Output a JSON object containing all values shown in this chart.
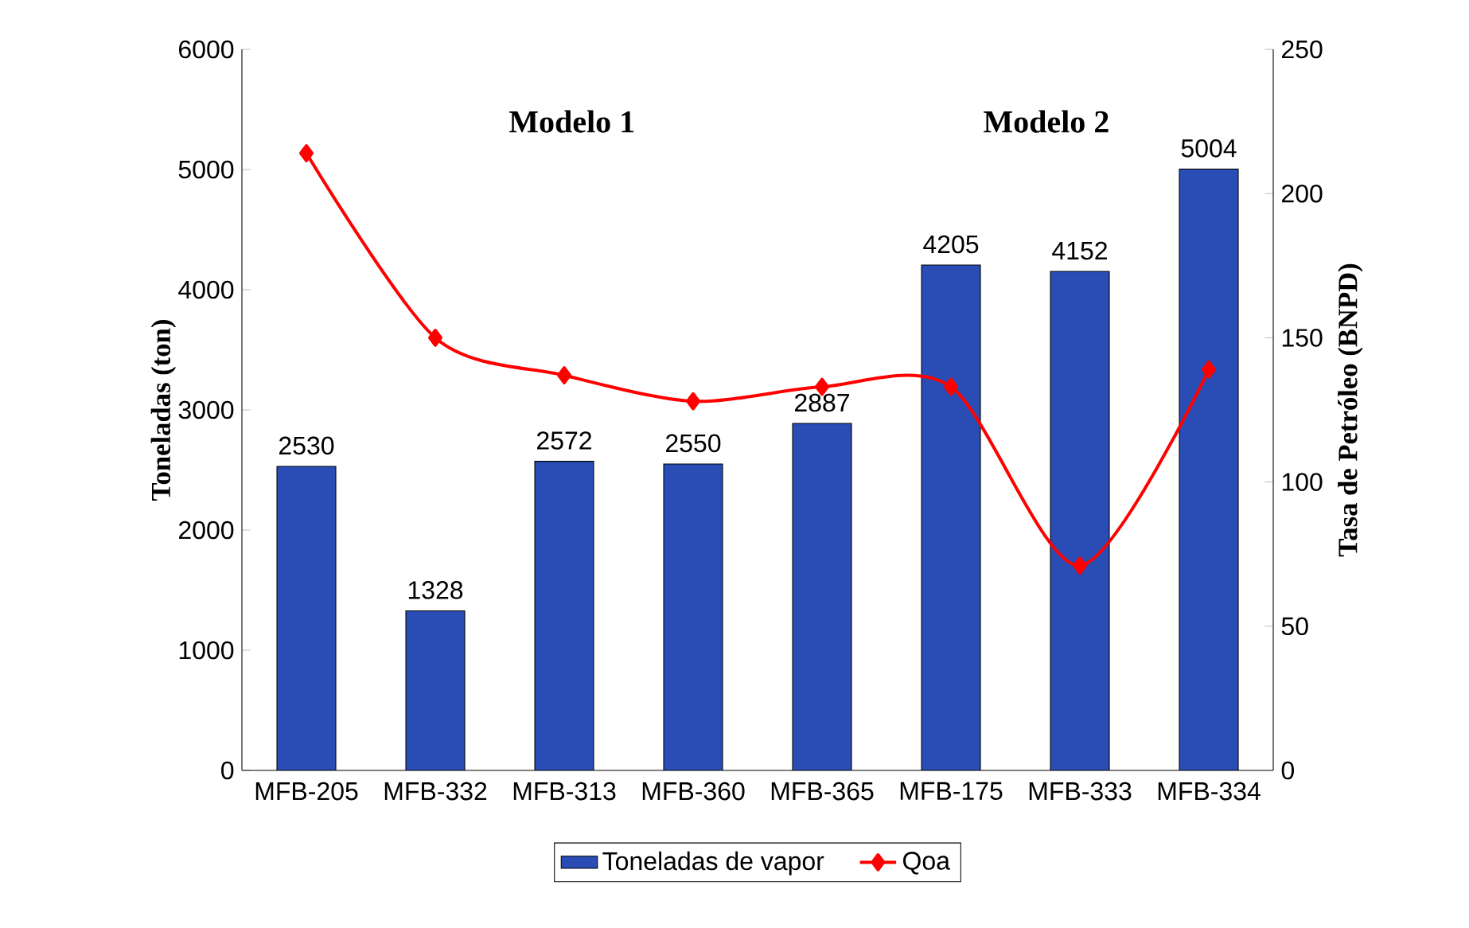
{
  "chart_data": {
    "type": "bar",
    "categories": [
      "MFB-205",
      "MFB-332",
      "MFB-313",
      "MFB-360",
      "MFB-365",
      "MFB-175",
      "MFB-333",
      "MFB-334"
    ],
    "series": [
      {
        "name": "Toneladas de vapor",
        "color": "#2a4db5",
        "values": [
          2530,
          1328,
          2572,
          2550,
          2887,
          4205,
          4152,
          5004
        ],
        "value_labels": [
          "2530",
          "1328",
          "2572",
          "2550",
          "2887",
          "4205",
          "4152",
          "5004"
        ]
      },
      {
        "name": "Qoa",
        "type": "line",
        "axis": "y2",
        "color": "#ff0000",
        "marker": "diamond",
        "values": [
          214,
          150,
          137,
          128,
          133,
          133,
          71,
          139
        ]
      }
    ],
    "ylabel": "Toneladas (ton)",
    "y2label": "Tasa de Petróleo (BNPD)",
    "ylim": [
      0,
      6000
    ],
    "yticks": [
      0,
      1000,
      2000,
      3000,
      4000,
      5000,
      6000
    ],
    "y2lim": [
      0,
      250
    ],
    "y2ticks": [
      0,
      50,
      100,
      150,
      200,
      250
    ],
    "annotations": [
      "Modelo 1",
      "Modelo 2"
    ],
    "legend": "bottom",
    "grid": false
  }
}
